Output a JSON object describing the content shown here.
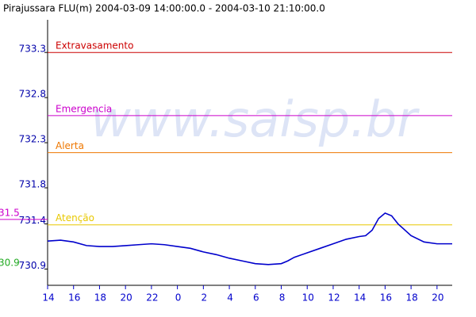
{
  "chart_data": {
    "type": "line",
    "title": "Pirajussara FLU(m) 2004-03-09 14:00:00.0 - 2004-03-10 21:10:00.0",
    "watermark": "www.saisp.br",
    "max_label": "31.5",
    "min_label": "30.9",
    "x": [
      14,
      15,
      16,
      17,
      18,
      19,
      20,
      21,
      22,
      23,
      24,
      25,
      26,
      27,
      28,
      29,
      30,
      31,
      32,
      32.5,
      33,
      34,
      35,
      36,
      37,
      38,
      38.5,
      39,
      39.5,
      40,
      40.5,
      41,
      42,
      43,
      44,
      45.17
    ],
    "series": [
      {
        "name": "Pirajussara FLU(m)",
        "color": "#0000cc",
        "values": [
          731.21,
          731.22,
          731.2,
          731.16,
          731.15,
          731.15,
          731.16,
          731.17,
          731.18,
          731.17,
          731.15,
          731.13,
          731.09,
          731.06,
          731.02,
          730.99,
          730.96,
          730.95,
          730.96,
          730.99,
          731.03,
          731.08,
          731.13,
          731.18,
          731.23,
          731.26,
          731.27,
          731.33,
          731.46,
          731.52,
          731.49,
          731.4,
          731.27,
          731.2,
          731.18,
          731.18
        ]
      }
    ],
    "thresholds": [
      {
        "label": "Extravasamento",
        "value": 733.3,
        "color": "#cc0000"
      },
      {
        "label": "Emergencia",
        "value": 732.6,
        "color": "#cc00cc"
      },
      {
        "label": "Alerta",
        "value": 732.19,
        "color": "#ee7700"
      },
      {
        "label": "Atenção",
        "value": 731.39,
        "color": "#e8c800"
      }
    ],
    "xlim": [
      14,
      45.17
    ],
    "xticks": [
      14,
      16,
      18,
      20,
      22,
      {
        "value": 24,
        "label": "0"
      },
      {
        "value": 26,
        "label": "2"
      },
      {
        "value": 28,
        "label": "4"
      },
      {
        "value": 30,
        "label": "6"
      },
      {
        "value": 32,
        "label": "8"
      },
      {
        "value": 34,
        "label": "10"
      },
      {
        "value": 36,
        "label": "12"
      },
      {
        "value": 38,
        "label": "14"
      },
      {
        "value": 40,
        "label": "16"
      },
      {
        "value": 42,
        "label": "18"
      },
      {
        "value": 44,
        "label": "20"
      }
    ],
    "ylim": [
      730.72,
      733.53
    ],
    "yticks": [
      733.3,
      732.8,
      732.3,
      731.8,
      731.4,
      730.9
    ],
    "grid": false
  }
}
